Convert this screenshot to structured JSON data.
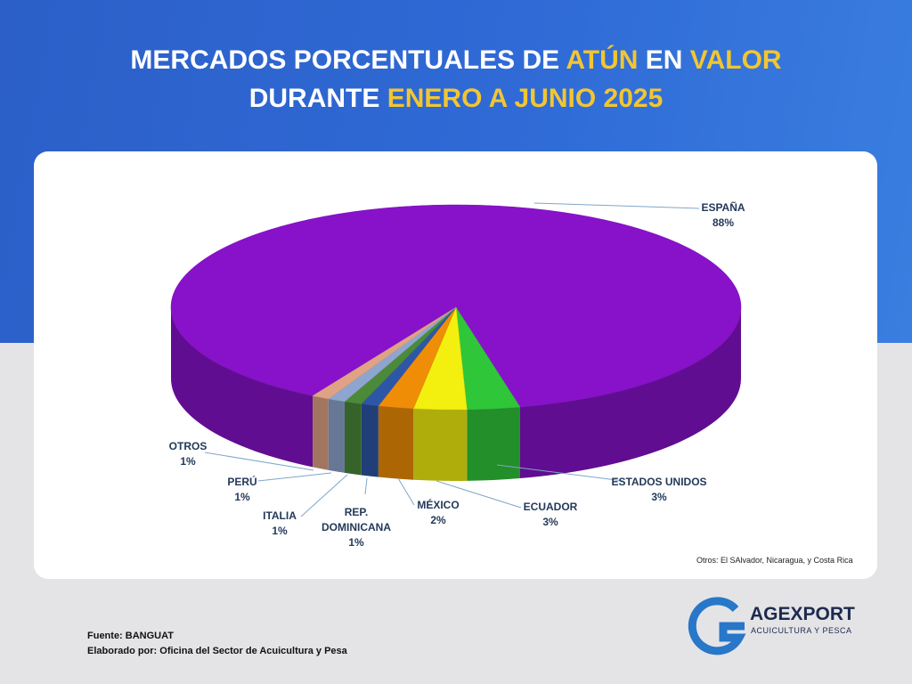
{
  "header": {
    "title_parts": [
      {
        "text": "MERCADOS PORCENTUALES DE ",
        "color": "#ffffff"
      },
      {
        "text": "ATÚN",
        "color": "#f2c631"
      },
      {
        "text": " EN ",
        "color": "#ffffff"
      },
      {
        "text": "VALOR",
        "color": "#f2c631"
      },
      {
        "text": "DURANTE ",
        "color": "#ffffff"
      },
      {
        "text": "ENERO A JUNIO 2025",
        "color": "#f2c631"
      }
    ]
  },
  "chart_data": {
    "type": "pie3d",
    "categories": [
      "ESPAÑA",
      "ESTADOS UNIDOS",
      "ECUADOR",
      "MÉXICO",
      "REP. DOMINICANA",
      "ITALIA",
      "PERÚ",
      "OTROS"
    ],
    "values": [
      88,
      3,
      3,
      2,
      1,
      1,
      1,
      1
    ],
    "value_labels": [
      "88%",
      "3%",
      "3%",
      "2%",
      "1%",
      "1%",
      "1%",
      "1%"
    ],
    "colors": [
      "#8712c9",
      "#2fc63a",
      "#f3f00f",
      "#f08d06",
      "#2d57a6",
      "#4b8a39",
      "#8ea6cf",
      "#e0a285"
    ],
    "note": "Otros: El SAlvador, Nicaragua, y Costa Rica"
  },
  "footer": {
    "source": "Fuente:  BANGUAT",
    "author": "Elaborado por:  Oficina del Sector de Acuicultura y Pesa",
    "logo_name": "AGEXPORT",
    "logo_sub": "ACUICULTURA Y PESCA"
  }
}
